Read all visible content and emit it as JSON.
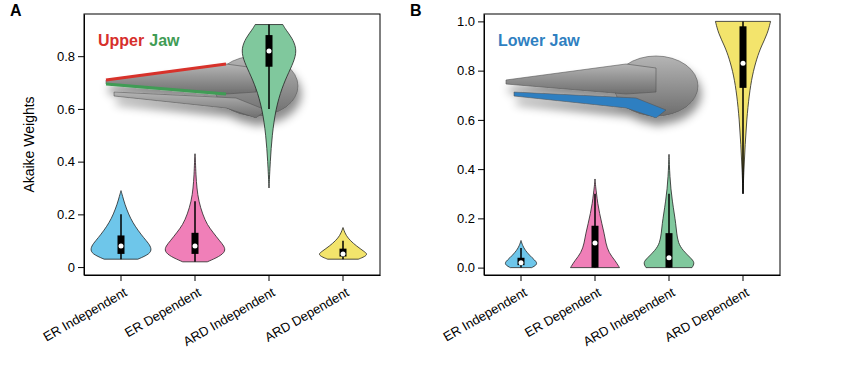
{
  "chart_data": [
    {
      "type": "violin",
      "title": "A",
      "y_label": "Akaike Weights",
      "annotations": [
        {
          "text": "Upper",
          "color": "#d7302c"
        },
        {
          "text": "Jaw",
          "color": "#3f9c55"
        }
      ],
      "categories": [
        "ER Independent",
        "ER Dependent",
        "ARD Independent",
        "ARD Dependent"
      ],
      "colors": [
        "#6ec6ea",
        "#f07fb8",
        "#80c89d",
        "#f3e46c"
      ],
      "ylim": [
        -0.03,
        0.96
      ],
      "yticks": [
        0,
        0.2,
        0.4,
        0.6,
        0.8
      ],
      "violins": [
        {
          "y": [
            0.03,
            0.05,
            0.07,
            0.09,
            0.11,
            0.14,
            0.17,
            0.2,
            0.24,
            0.27,
            0.29
          ],
          "density": [
            0.55,
            0.95,
            1.0,
            0.9,
            0.75,
            0.55,
            0.38,
            0.25,
            0.12,
            0.05,
            0
          ],
          "whisker_low": 0.03,
          "q1": 0.05,
          "median": 0.08,
          "q3": 0.12,
          "whisker_high": 0.2
        },
        {
          "y": [
            0.02,
            0.04,
            0.06,
            0.08,
            0.1,
            0.13,
            0.16,
            0.2,
            0.25,
            0.3,
            0.35,
            0.4,
            0.43
          ],
          "density": [
            0.4,
            0.8,
            1.0,
            0.95,
            0.8,
            0.6,
            0.4,
            0.25,
            0.12,
            0.06,
            0.03,
            0.015,
            0
          ],
          "whisker_low": 0.02,
          "q1": 0.05,
          "median": 0.08,
          "q3": 0.13,
          "whisker_high": 0.25
        },
        {
          "y": [
            0.3,
            0.4,
            0.5,
            0.6,
            0.68,
            0.74,
            0.79,
            0.83,
            0.87,
            0.9,
            0.92
          ],
          "density": [
            0,
            0.04,
            0.1,
            0.22,
            0.42,
            0.65,
            0.85,
            0.9,
            0.75,
            0.55,
            0.45
          ],
          "whisker_low": 0.6,
          "q1": 0.76,
          "median": 0.82,
          "q3": 0.88,
          "whisker_high": 0.92
        },
        {
          "y": [
            0.03,
            0.04,
            0.05,
            0.06,
            0.08,
            0.1,
            0.12,
            0.14,
            0.15
          ],
          "density": [
            0.5,
            0.72,
            0.8,
            0.68,
            0.44,
            0.24,
            0.1,
            0.03,
            0
          ],
          "whisker_low": 0.03,
          "q1": 0.04,
          "median": 0.05,
          "q3": 0.07,
          "whisker_high": 0.1
        }
      ]
    },
    {
      "type": "violin",
      "title": "B",
      "annotations": [
        {
          "text": "Lower Jaw",
          "color": "#2f7fc1"
        }
      ],
      "categories": [
        "ER Independent",
        "ER Dependent",
        "ARD Independent",
        "ARD Dependent"
      ],
      "colors": [
        "#6ec6ea",
        "#f07fb8",
        "#80c89d",
        "#f3e46c"
      ],
      "ylim": [
        -0.03,
        1.03
      ],
      "yticks": [
        {
          "value": 0,
          "label": "0.0"
        },
        0.2,
        0.4,
        0.6,
        0.8,
        {
          "value": 1,
          "label": "1.0"
        }
      ],
      "violins": [
        {
          "y": [
            0,
            0.01,
            0.02,
            0.03,
            0.05,
            0.07,
            0.09,
            0.11
          ],
          "density": [
            0.35,
            0.5,
            0.52,
            0.45,
            0.28,
            0.14,
            0.05,
            0
          ],
          "whisker_low": 0,
          "q1": 0.01,
          "median": 0.02,
          "q3": 0.04,
          "whisker_high": 0.08
        },
        {
          "y": [
            0,
            0.03,
            0.06,
            0.1,
            0.14,
            0.18,
            0.22,
            0.26,
            0.3,
            0.33,
            0.36
          ],
          "density": [
            0.8,
            0.65,
            0.45,
            0.35,
            0.3,
            0.22,
            0.15,
            0.09,
            0.05,
            0.02,
            0
          ],
          "whisker_low": 0,
          "q1": 0,
          "median": 0.1,
          "q3": 0.17,
          "whisker_high": 0.3
        },
        {
          "y": [
            0,
            0.02,
            0.04,
            0.07,
            0.1,
            0.14,
            0.18,
            0.22,
            0.27,
            0.32,
            0.37,
            0.42,
            0.46
          ],
          "density": [
            0.75,
            0.85,
            0.7,
            0.45,
            0.3,
            0.25,
            0.22,
            0.17,
            0.11,
            0.06,
            0.03,
            0.01,
            0
          ],
          "whisker_low": 0,
          "q1": 0,
          "median": 0.04,
          "q3": 0.14,
          "whisker_high": 0.3
        },
        {
          "y": [
            0.3,
            0.4,
            0.5,
            0.6,
            0.7,
            0.78,
            0.85,
            0.9,
            0.95,
            1.0
          ],
          "density": [
            0,
            0.03,
            0.07,
            0.12,
            0.2,
            0.3,
            0.45,
            0.6,
            0.8,
            0.9
          ],
          "whisker_low": 0.3,
          "q1": 0.73,
          "median": 0.83,
          "q3": 0.98,
          "whisker_high": 1.0
        }
      ]
    }
  ]
}
